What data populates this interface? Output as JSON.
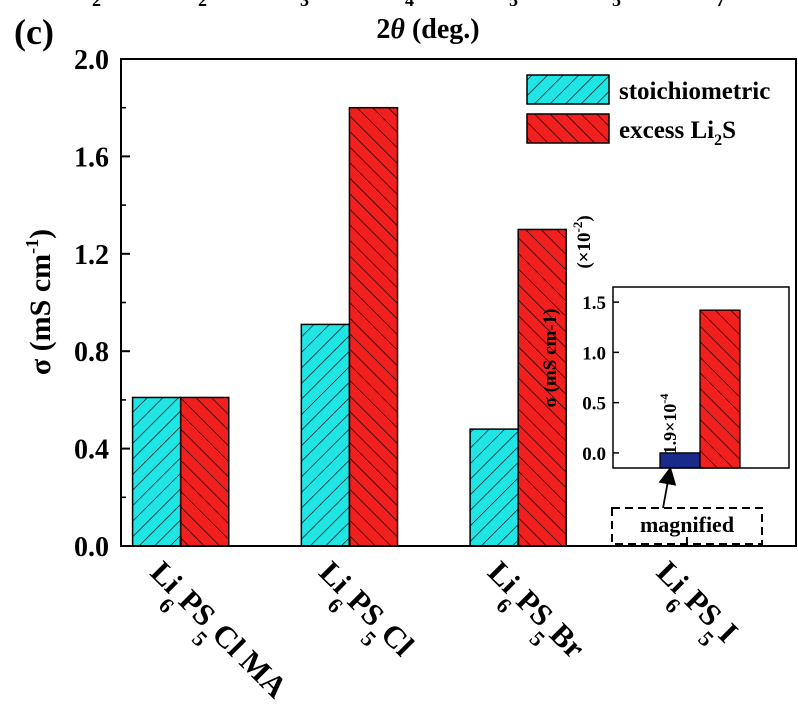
{
  "panel_label": "(c)",
  "colors": {
    "stoichiometric": "#1fe5e5",
    "excess": "#f21f1f",
    "axis": "#000000"
  },
  "chart_data": [
    {
      "type": "bar",
      "top_axis_label": {
        "main": "2",
        "italic": "θ",
        "tail": " (deg.)"
      },
      "ylabel": {
        "main": "σ (mS cm",
        "sup": "-1",
        "tail": ")"
      },
      "ylim": [
        0,
        2.0
      ],
      "yticks": [
        "0.0",
        "0.4",
        "0.8",
        "1.2",
        "1.6",
        "2.0"
      ],
      "categories": [
        {
          "parts": [
            "Li",
            "6",
            "PS",
            "5",
            "Cl MA"
          ]
        },
        {
          "parts": [
            "Li",
            "6",
            "PS",
            "5",
            "Cl"
          ]
        },
        {
          "parts": [
            "Li",
            "6",
            "PS",
            "5",
            "Br"
          ]
        },
        {
          "parts": [
            "Li",
            "6",
            "PS",
            "5",
            "I"
          ]
        }
      ],
      "series": [
        {
          "name": "stoichiometric",
          "values": [
            0.61,
            0.91,
            0.48,
            null
          ]
        },
        {
          "name": {
            "main": "excess Li",
            "sub": "2",
            "tail": "S"
          },
          "values": [
            0.61,
            1.8,
            1.3,
            null
          ]
        }
      ],
      "legend_position": "top-right",
      "grid": false
    },
    {
      "type": "bar",
      "role": "inset",
      "ylabel": "σ (mS cm-1)",
      "ylabel_multiplier": {
        "open": "(×10",
        "sup": "-2",
        "close": ")"
      },
      "ylim": [
        -0.15,
        1.65
      ],
      "yticks": [
        "0.0",
        "0.5",
        "1.0",
        "1.5"
      ],
      "series": [
        {
          "name": "stoichiometric",
          "values": [
            0.00019
          ]
        },
        {
          "name": "excess Li2S",
          "values": [
            1.42
          ]
        }
      ],
      "annotation": {
        "main": "1.9×10",
        "sup": "-4"
      },
      "magnified_label": "magnified"
    }
  ]
}
